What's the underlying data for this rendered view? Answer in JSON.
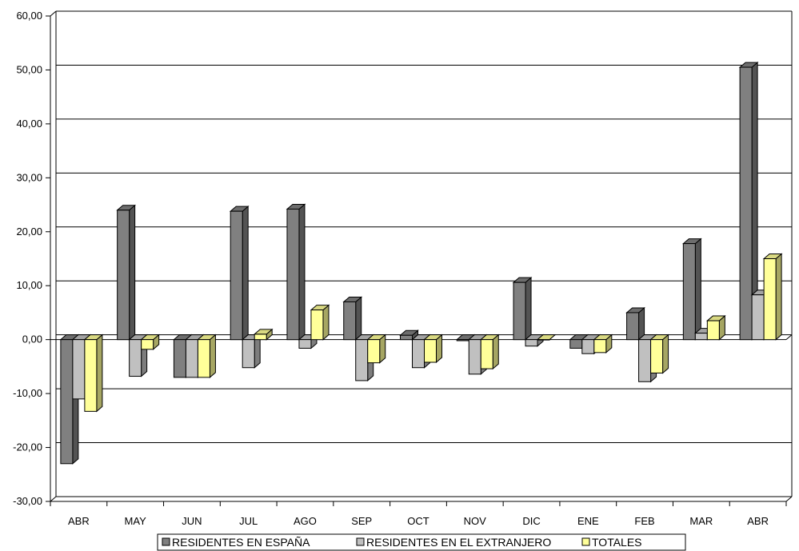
{
  "chart_data": {
    "type": "bar",
    "title": "",
    "xlabel": "",
    "ylabel": "",
    "categories": [
      "ABR",
      "MAY",
      "JUN",
      "JUL",
      "AGO",
      "SEP",
      "OCT",
      "NOV",
      "DIC",
      "ENE",
      "FEB",
      "MAR",
      "ABR"
    ],
    "ylim": [
      -30,
      60
    ],
    "yticks": [
      -30,
      -20,
      -10,
      0,
      10,
      20,
      30,
      40,
      50,
      60
    ],
    "ytick_labels": [
      "-30,00",
      "-20,00",
      "-10,00",
      "0,00",
      "10,00",
      "20,00",
      "30,00",
      "40,00",
      "50,00",
      "60,00"
    ],
    "grid": "horizontal",
    "legend_position": "bottom",
    "three_d": true,
    "series": [
      {
        "name": "RESIDENTES EN ESPAÑA",
        "color": "#808080",
        "values": [
          -23.0,
          24.0,
          -7.0,
          23.8,
          24.2,
          7.0,
          0.8,
          -0.2,
          10.6,
          -1.6,
          5.0,
          17.8,
          50.5
        ]
      },
      {
        "name": "RESIDENTES EN EL EXTRANJERO",
        "color": "#c0c0c0",
        "values": [
          -11.0,
          -6.8,
          -7.0,
          -5.2,
          -1.6,
          -7.6,
          -5.2,
          -6.4,
          -1.2,
          -2.6,
          -7.8,
          1.2,
          8.3
        ]
      },
      {
        "name": "TOTALES",
        "color": "#ffff99",
        "values": [
          -13.3,
          -1.8,
          -7.0,
          1.0,
          5.5,
          -4.3,
          -4.2,
          -5.4,
          0.0,
          -2.4,
          -6.2,
          3.5,
          15.0
        ]
      }
    ]
  }
}
